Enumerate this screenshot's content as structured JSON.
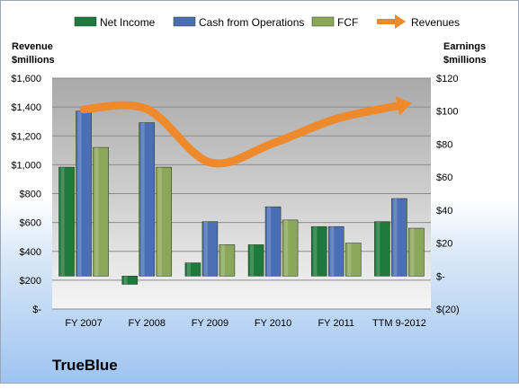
{
  "company": "TrueBlue",
  "colors": {
    "net_income": "#1e7a3c",
    "cash_from_operations": "#4a6fb5",
    "fcf": "#8ba85a",
    "revenues": "#ee8a2c"
  },
  "chart_data": {
    "type": "bar",
    "categories": [
      "FY 2007",
      "FY 2008",
      "FY 2009",
      "FY 2010",
      "FY 2011",
      "TTM 9-2012"
    ],
    "series": [
      {
        "name": "Net Income",
        "type": "bar",
        "axis": "right",
        "values": [
          66,
          -5,
          8,
          19,
          30,
          33
        ]
      },
      {
        "name": "Cash from Operations",
        "type": "bar",
        "axis": "right",
        "values": [
          100,
          93,
          33,
          42,
          30,
          47
        ]
      },
      {
        "name": "FCF",
        "type": "bar",
        "axis": "right",
        "values": [
          78,
          66,
          19,
          34,
          20,
          29
        ]
      },
      {
        "name": "Revenues",
        "type": "line",
        "axis": "left",
        "values": [
          1384,
          1386,
          1016,
          1149,
          1318,
          1410
        ]
      }
    ],
    "y_left": {
      "label": "Revenue $millions",
      "range": [
        0,
        1600
      ],
      "ticks": [
        "$-",
        "$200",
        "$400",
        "$600",
        "$800",
        "$1,000",
        "$1,200",
        "$1,400",
        "$1,600"
      ]
    },
    "y_right": {
      "label": "Earnings $millions",
      "range": [
        -20,
        120
      ],
      "ticks": [
        "$(20)",
        "$-",
        "$20",
        "$40",
        "$60",
        "$80",
        "$100",
        "$120"
      ]
    },
    "legend_position": "top",
    "grid": true
  }
}
